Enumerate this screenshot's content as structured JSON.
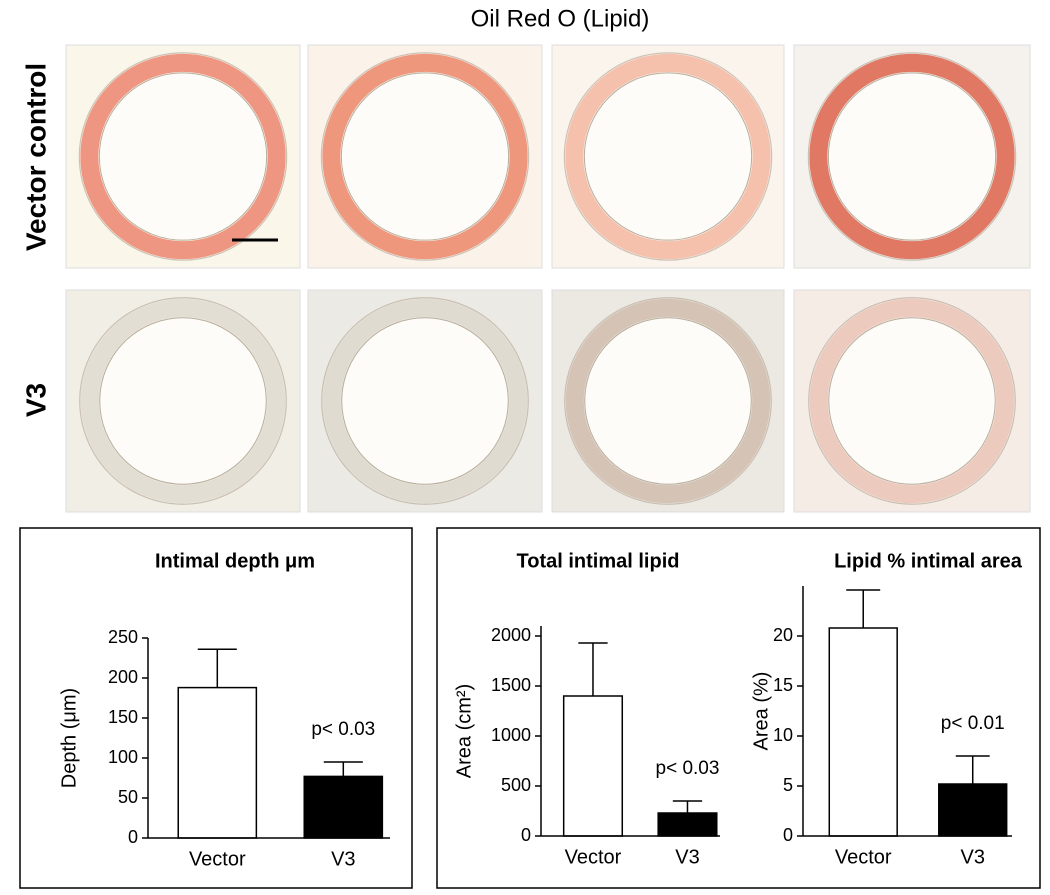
{
  "figure_title": "Oil Red O (Lipid)",
  "row_labels": [
    "Vector control",
    "V3"
  ],
  "chart_data": [
    {
      "type": "bar",
      "title": "Intimal depth μm",
      "y_label": "Depth (μm)",
      "categories": [
        "Vector",
        "V3"
      ],
      "values": [
        188,
        77
      ],
      "errors": [
        48,
        18
      ],
      "colors": [
        "#ffffff",
        "#000000"
      ],
      "ylim": [
        0,
        250
      ],
      "yticks": [
        0,
        50,
        100,
        150,
        200,
        250
      ],
      "annotation": "p< 0.03"
    },
    {
      "type": "bar",
      "title": "Total intimal lipid",
      "y_label": "Area (cm²)",
      "categories": [
        "Vector",
        "V3"
      ],
      "values": [
        1400,
        230
      ],
      "errors": [
        530,
        120
      ],
      "colors": [
        "#ffffff",
        "#000000"
      ],
      "ylim": [
        0,
        2100
      ],
      "yticks": [
        0,
        500,
        1000,
        1500,
        2000
      ],
      "annotation": "p< 0.03"
    },
    {
      "type": "bar",
      "title": "Lipid % intimal area",
      "y_label": "Area (%)",
      "categories": [
        "Vector",
        "V3"
      ],
      "values": [
        20.8,
        5.2
      ],
      "errors": [
        3.8,
        2.8
      ],
      "colors": [
        "#ffffff",
        "#000000"
      ],
      "ylim": [
        0,
        25
      ],
      "yticks": [
        0,
        5,
        10,
        15,
        20
      ],
      "annotation": "p< 0.01"
    }
  ]
}
